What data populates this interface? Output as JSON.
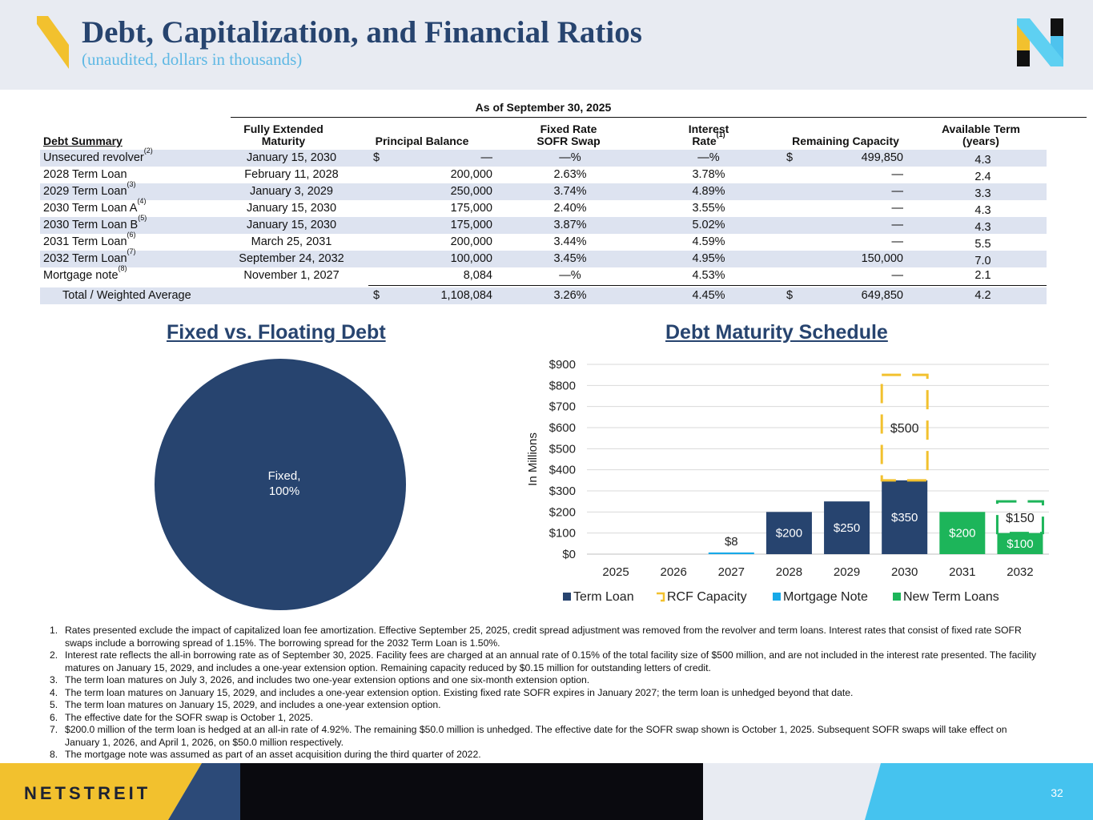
{
  "header": {
    "title": "Debt, Capitalization, and Financial Ratios",
    "subtitle": "(unaudited, dollars in thousands)"
  },
  "colors": {
    "navy": "#27446f",
    "light_blue": "#5eb8e4",
    "gold": "#f2c12e",
    "green": "#1db55a",
    "mortgage_blue": "#17a9e8"
  },
  "table": {
    "as_of": "As of September 30, 2025",
    "headers": {
      "debt_summary": "Debt Summary",
      "maturity_1": "Fully Extended",
      "maturity_2": "Maturity",
      "principal": "Principal Balance",
      "swap_1": "Fixed Rate",
      "swap_2": "SOFR Swap",
      "rate_1": "Interest",
      "rate_2": "Rate",
      "rate_sup": "(1)",
      "capacity": "Remaining Capacity",
      "term_1": "Available Term",
      "term_2": "(years)"
    },
    "rows": [
      {
        "name": "Unsecured revolver",
        "sup": "(2)",
        "maturity": "January 15, 2030",
        "dollar": "$",
        "principal": "—",
        "swap": "—%",
        "rate": "—%",
        "cap_dollar": "$",
        "capacity": "499,850",
        "term": "4.3"
      },
      {
        "name": "2028 Term Loan",
        "sup": "",
        "maturity": "February 11, 2028",
        "dollar": "",
        "principal": "200,000",
        "swap": "2.63%",
        "rate": "3.78%",
        "cap_dollar": "",
        "capacity": "—",
        "term": "2.4"
      },
      {
        "name": "2029 Term Loan",
        "sup": "(3)",
        "maturity": "January 3, 2029",
        "dollar": "",
        "principal": "250,000",
        "swap": "3.74%",
        "rate": "4.89%",
        "cap_dollar": "",
        "capacity": "—",
        "term": "3.3"
      },
      {
        "name": "2030 Term Loan A",
        "sup": "(4)",
        "maturity": "January 15, 2030",
        "dollar": "",
        "principal": "175,000",
        "swap": "2.40%",
        "rate": "3.55%",
        "cap_dollar": "",
        "capacity": "—",
        "term": "4.3"
      },
      {
        "name": "2030 Term Loan B",
        "sup": "(5)",
        "maturity": "January 15, 2030",
        "dollar": "",
        "principal": "175,000",
        "swap": "3.87%",
        "rate": "5.02%",
        "cap_dollar": "",
        "capacity": "—",
        "term": "4.3"
      },
      {
        "name": "2031 Term Loan",
        "sup": "(6)",
        "maturity": "March 25, 2031",
        "dollar": "",
        "principal": "200,000",
        "swap": "3.44%",
        "rate": "4.59%",
        "cap_dollar": "",
        "capacity": "—",
        "term": "5.5"
      },
      {
        "name": "2032 Term Loan",
        "sup": "(7)",
        "maturity": "September 24, 2032",
        "dollar": "",
        "principal": "100,000",
        "swap": "3.45%",
        "rate": "4.95%",
        "cap_dollar": "",
        "capacity": "150,000",
        "term": "7.0"
      },
      {
        "name": "Mortgage note",
        "sup": "(8)",
        "maturity": "November 1, 2027",
        "dollar": "",
        "principal": "8,084",
        "swap": "—%",
        "rate": "4.53%",
        "cap_dollar": "",
        "capacity": "—",
        "term": "2.1"
      }
    ],
    "total": {
      "name": "Total / Weighted Average",
      "dollar": "$",
      "principal": "1,108,084",
      "swap": "3.26%",
      "rate": "4.45%",
      "cap_dollar": "$",
      "capacity": "649,850",
      "term": "4.2"
    }
  },
  "pie": {
    "title": "Fixed vs. Floating Debt",
    "label_name": "Fixed,",
    "label_pct": "100%"
  },
  "chart_data": {
    "type": "bar",
    "title": "Debt Maturity Schedule",
    "ylabel": "In Millions",
    "ylim": [
      0,
      900
    ],
    "yticks": [
      "$0",
      "$100",
      "$200",
      "$300",
      "$400",
      "$500",
      "$600",
      "$700",
      "$800",
      "$900"
    ],
    "categories": [
      "2025",
      "2026",
      "2027",
      "2028",
      "2029",
      "2030",
      "2031",
      "2032"
    ],
    "series": [
      {
        "name": "Term Loan",
        "values": [
          0,
          0,
          0,
          200,
          250,
          350,
          0,
          0
        ],
        "labels": [
          "",
          "",
          "",
          "$200",
          "$250",
          "$350",
          "",
          ""
        ]
      },
      {
        "name": "RCF Capacity",
        "values": [
          0,
          0,
          0,
          0,
          0,
          500,
          0,
          150
        ],
        "labels": [
          "",
          "",
          "",
          "",
          "",
          "$500",
          "",
          "$150"
        ]
      },
      {
        "name": "Mortgage Note",
        "values": [
          0,
          0,
          8,
          0,
          0,
          0,
          0,
          0
        ],
        "labels": [
          "",
          "",
          "$8",
          "",
          "",
          "",
          "",
          ""
        ]
      },
      {
        "name": "New Term Loans",
        "values": [
          0,
          0,
          0,
          0,
          0,
          0,
          200,
          100
        ],
        "labels": [
          "",
          "",
          "",
          "",
          "",
          "",
          "$200",
          "$100"
        ]
      }
    ]
  },
  "notes": [
    {
      "num": "1.",
      "text": "Rates presented exclude the impact of capitalized loan fee amortization. Effective September 25, 2025, credit spread adjustment was removed from the revolver and term loans. Interest rates that consist of fixed rate SOFR swaps include a borrowing spread of 1.15%. The borrowing spread for the 2032 Term Loan is 1.50%."
    },
    {
      "num": "2.",
      "text": "Interest rate reflects the all-in borrowing rate as of September 30, 2025. Facility fees are charged at an annual rate of 0.15% of the total facility size of $500 million, and are not included in the interest rate presented. The facility matures on January 15, 2029, and includes a one-year extension option. Remaining capacity reduced by $0.15 million for outstanding letters of credit."
    },
    {
      "num": "3.",
      "text": "The term loan matures on July 3, 2026, and includes two one-year extension options and one six-month extension option."
    },
    {
      "num": "4.",
      "text": "The term loan matures on January 15, 2029, and includes a one-year extension option. Existing fixed rate SOFR expires in January 2027; the term loan is unhedged beyond that date."
    },
    {
      "num": "5.",
      "text": "The term loan matures on January 15, 2029, and includes a one-year extension option."
    },
    {
      "num": "6.",
      "text": "The effective date for the SOFR swap is October 1, 2025."
    },
    {
      "num": "7.",
      "text": "$200.0 million of the term loan is hedged at an all-in rate of 4.92%. The remaining $50.0 million is unhedged.  The effective date for the SOFR swap shown is October 1, 2025. Subsequent SOFR swaps will take effect on January 1, 2026, and April 1, 2026, on $50.0 million respectively."
    },
    {
      "num": "8.",
      "text": "The mortgage note was assumed as part of an asset acquisition during the third quarter of 2022."
    }
  ],
  "footer": {
    "brand": "NETSTREIT",
    "page": "32"
  }
}
